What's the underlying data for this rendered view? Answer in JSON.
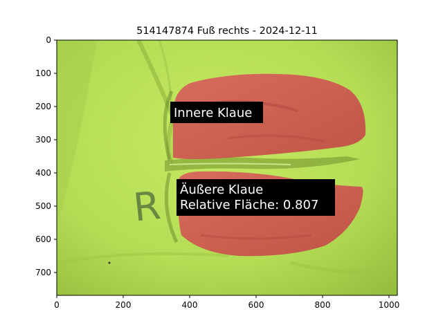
{
  "figure": {
    "title": "514147874 Fuß rechts - 2024-12-11"
  },
  "axes": {
    "x_ticks": [
      "0",
      "200",
      "400",
      "600",
      "800",
      "1000"
    ],
    "y_ticks": [
      "0",
      "100",
      "200",
      "300",
      "400",
      "500",
      "600",
      "700"
    ],
    "xlim": [
      0,
      1024
    ],
    "ylim": [
      768,
      0
    ]
  },
  "image": {
    "description_colors": {
      "background": "#b8e05a",
      "mask": "#cf5a52",
      "mask_dark": "#b2473f"
    },
    "handwritten_mark": "R"
  },
  "annotations": {
    "inner": {
      "label": "Innere Klaue"
    },
    "outer": {
      "line1": "Äußere Klaue",
      "line2": "Relative Fläche: 0.807"
    }
  }
}
